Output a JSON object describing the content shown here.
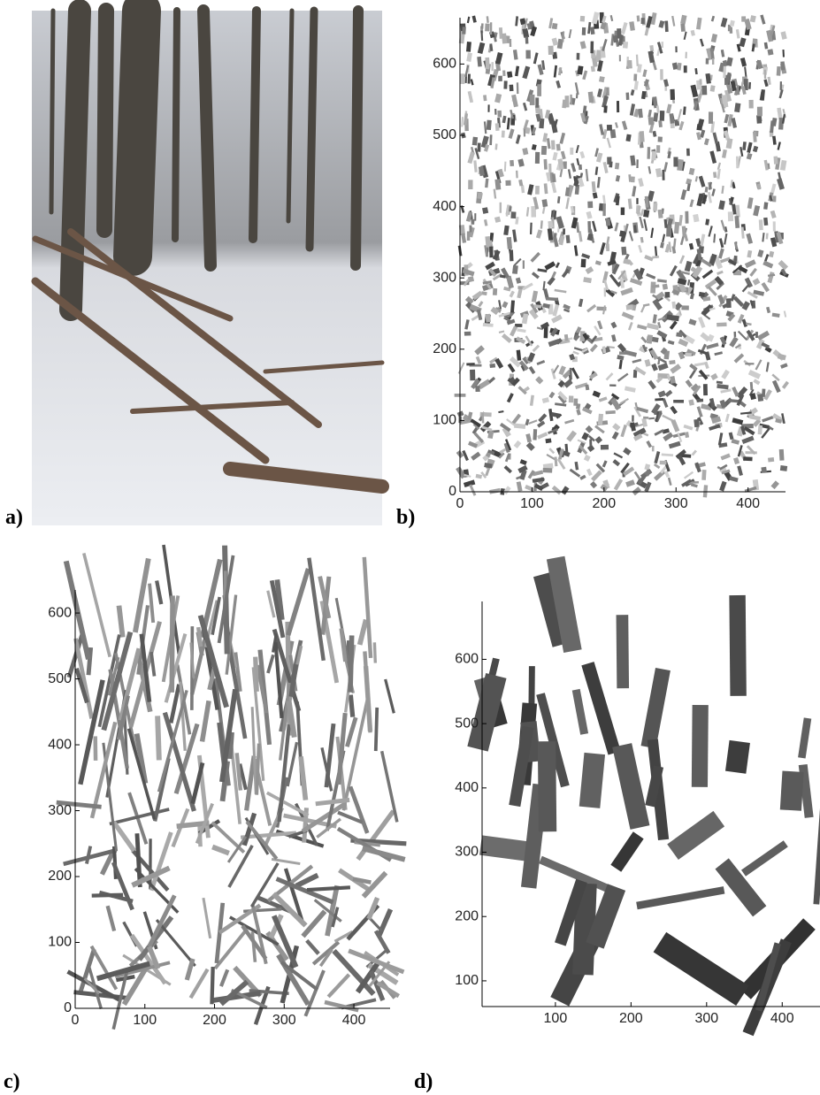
{
  "panels": [
    {
      "label": "a)"
    },
    {
      "label": "b)",
      "xlim": [
        0,
        452
      ],
      "ylim": [
        0,
        665
      ],
      "xticks": [
        0,
        100,
        200,
        300,
        400
      ],
      "yticks": [
        0,
        100,
        200,
        300,
        400,
        500,
        600
      ]
    },
    {
      "label": "c)",
      "xlim": [
        0,
        452
      ],
      "ylim": [
        0,
        635
      ],
      "xticks": [
        0,
        100,
        200,
        300,
        400
      ],
      "yticks": [
        0,
        100,
        200,
        300,
        400,
        500,
        600
      ]
    },
    {
      "label": "d)",
      "xlim": [
        3,
        450
      ],
      "ylim": [
        60,
        690
      ],
      "xticks": [
        100,
        200,
        300,
        400
      ],
      "yticks": [
        100,
        200,
        300,
        400,
        500,
        600
      ]
    }
  ]
}
